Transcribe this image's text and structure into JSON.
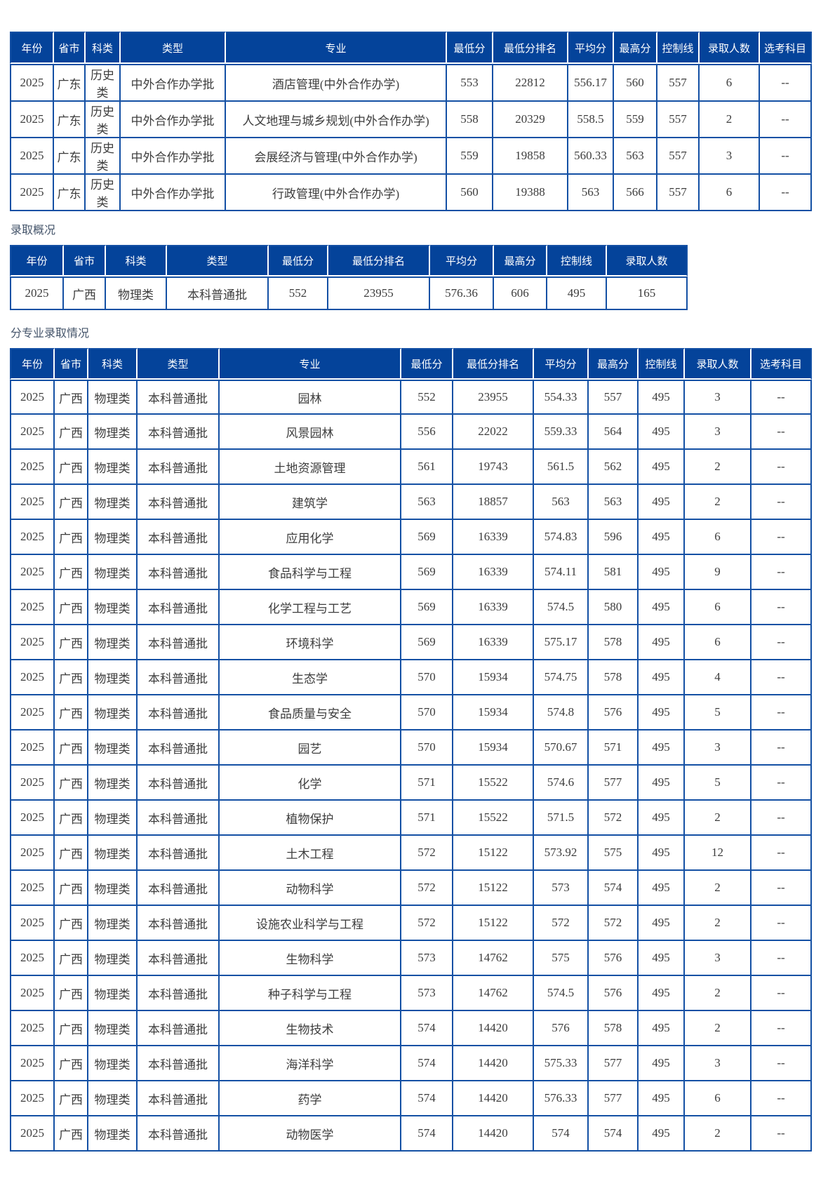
{
  "colors": {
    "header_bg": "#04439a",
    "grid_border": "#1450a4",
    "header_text": "#ffffff",
    "body_text": "#3d3d3d",
    "label_text": "#44546a"
  },
  "sections": {
    "overview_label": "录取概况",
    "by_major_label": "分专业录取情况"
  },
  "tables": [
    {
      "id": "guangdong-history-by-major",
      "columns": [
        "年份",
        "省市",
        "科类",
        "类型",
        "专业",
        "最低分",
        "最低分排名",
        "平均分",
        "最高分",
        "控制线",
        "录取人数",
        "选考科目"
      ],
      "rows": [
        [
          "2025",
          "广东",
          "历史类",
          "中外合作办学批",
          "酒店管理(中外合作办学)",
          "553",
          "22812",
          "556.17",
          "560",
          "557",
          "6",
          "--"
        ],
        [
          "2025",
          "广东",
          "历史类",
          "中外合作办学批",
          "人文地理与城乡规划(中外合作办学)",
          "558",
          "20329",
          "558.5",
          "559",
          "557",
          "2",
          "--"
        ],
        [
          "2025",
          "广东",
          "历史类",
          "中外合作办学批",
          "会展经济与管理(中外合作办学)",
          "559",
          "19858",
          "560.33",
          "563",
          "557",
          "3",
          "--"
        ],
        [
          "2025",
          "广东",
          "历史类",
          "中外合作办学批",
          "行政管理(中外合作办学)",
          "560",
          "19388",
          "563",
          "566",
          "557",
          "6",
          "--"
        ]
      ]
    },
    {
      "id": "guangxi-overview",
      "columns": [
        "年份",
        "省市",
        "科类",
        "类型",
        "最低分",
        "最低分排名",
        "平均分",
        "最高分",
        "控制线",
        "录取人数"
      ],
      "rows": [
        [
          "2025",
          "广西",
          "物理类",
          "本科普通批",
          "552",
          "23955",
          "576.36",
          "606",
          "495",
          "165"
        ]
      ]
    },
    {
      "id": "guangxi-by-major",
      "columns": [
        "年份",
        "省市",
        "科类",
        "类型",
        "专业",
        "最低分",
        "最低分排名",
        "平均分",
        "最高分",
        "控制线",
        "录取人数",
        "选考科目"
      ],
      "rows": [
        [
          "2025",
          "广西",
          "物理类",
          "本科普通批",
          "园林",
          "552",
          "23955",
          "554.33",
          "557",
          "495",
          "3",
          "--"
        ],
        [
          "2025",
          "广西",
          "物理类",
          "本科普通批",
          "风景园林",
          "556",
          "22022",
          "559.33",
          "564",
          "495",
          "3",
          "--"
        ],
        [
          "2025",
          "广西",
          "物理类",
          "本科普通批",
          "土地资源管理",
          "561",
          "19743",
          "561.5",
          "562",
          "495",
          "2",
          "--"
        ],
        [
          "2025",
          "广西",
          "物理类",
          "本科普通批",
          "建筑学",
          "563",
          "18857",
          "563",
          "563",
          "495",
          "2",
          "--"
        ],
        [
          "2025",
          "广西",
          "物理类",
          "本科普通批",
          "应用化学",
          "569",
          "16339",
          "574.83",
          "596",
          "495",
          "6",
          "--"
        ],
        [
          "2025",
          "广西",
          "物理类",
          "本科普通批",
          "食品科学与工程",
          "569",
          "16339",
          "574.11",
          "581",
          "495",
          "9",
          "--"
        ],
        [
          "2025",
          "广西",
          "物理类",
          "本科普通批",
          "化学工程与工艺",
          "569",
          "16339",
          "574.5",
          "580",
          "495",
          "6",
          "--"
        ],
        [
          "2025",
          "广西",
          "物理类",
          "本科普通批",
          "环境科学",
          "569",
          "16339",
          "575.17",
          "578",
          "495",
          "6",
          "--"
        ],
        [
          "2025",
          "广西",
          "物理类",
          "本科普通批",
          "生态学",
          "570",
          "15934",
          "574.75",
          "578",
          "495",
          "4",
          "--"
        ],
        [
          "2025",
          "广西",
          "物理类",
          "本科普通批",
          "食品质量与安全",
          "570",
          "15934",
          "574.8",
          "576",
          "495",
          "5",
          "--"
        ],
        [
          "2025",
          "广西",
          "物理类",
          "本科普通批",
          "园艺",
          "570",
          "15934",
          "570.67",
          "571",
          "495",
          "3",
          "--"
        ],
        [
          "2025",
          "广西",
          "物理类",
          "本科普通批",
          "化学",
          "571",
          "15522",
          "574.6",
          "577",
          "495",
          "5",
          "--"
        ],
        [
          "2025",
          "广西",
          "物理类",
          "本科普通批",
          "植物保护",
          "571",
          "15522",
          "571.5",
          "572",
          "495",
          "2",
          "--"
        ],
        [
          "2025",
          "广西",
          "物理类",
          "本科普通批",
          "土木工程",
          "572",
          "15122",
          "573.92",
          "575",
          "495",
          "12",
          "--"
        ],
        [
          "2025",
          "广西",
          "物理类",
          "本科普通批",
          "动物科学",
          "572",
          "15122",
          "573",
          "574",
          "495",
          "2",
          "--"
        ],
        [
          "2025",
          "广西",
          "物理类",
          "本科普通批",
          "设施农业科学与工程",
          "572",
          "15122",
          "572",
          "572",
          "495",
          "2",
          "--"
        ],
        [
          "2025",
          "广西",
          "物理类",
          "本科普通批",
          "生物科学",
          "573",
          "14762",
          "575",
          "576",
          "495",
          "3",
          "--"
        ],
        [
          "2025",
          "广西",
          "物理类",
          "本科普通批",
          "种子科学与工程",
          "573",
          "14762",
          "574.5",
          "576",
          "495",
          "2",
          "--"
        ],
        [
          "2025",
          "广西",
          "物理类",
          "本科普通批",
          "生物技术",
          "574",
          "14420",
          "576",
          "578",
          "495",
          "2",
          "--"
        ],
        [
          "2025",
          "广西",
          "物理类",
          "本科普通批",
          "海洋科学",
          "574",
          "14420",
          "575.33",
          "577",
          "495",
          "3",
          "--"
        ],
        [
          "2025",
          "广西",
          "物理类",
          "本科普通批",
          "药学",
          "574",
          "14420",
          "576.33",
          "577",
          "495",
          "6",
          "--"
        ],
        [
          "2025",
          "广西",
          "物理类",
          "本科普通批",
          "动物医学",
          "574",
          "14420",
          "574",
          "574",
          "495",
          "2",
          "--"
        ]
      ]
    }
  ]
}
